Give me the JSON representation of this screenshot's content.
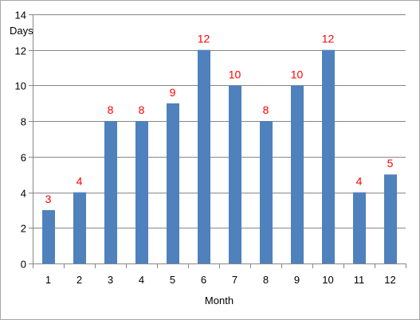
{
  "chart_data": {
    "type": "bar",
    "title": "",
    "xlabel": "Month",
    "ylabel": "Days",
    "categories": [
      "1",
      "2",
      "3",
      "4",
      "5",
      "6",
      "7",
      "8",
      "9",
      "10",
      "11",
      "12"
    ],
    "values": [
      3,
      4,
      8,
      8,
      9,
      12,
      10,
      8,
      10,
      12,
      4,
      5
    ],
    "data_labels": [
      "3",
      "4",
      "8",
      "8",
      "9",
      "12",
      "10",
      "8",
      "10",
      "12",
      "4",
      "5"
    ],
    "ylim": [
      0,
      14
    ],
    "yticks": [
      "0",
      "2",
      "4",
      "6",
      "8",
      "10",
      "12",
      "14"
    ],
    "grid": true,
    "legend": "none",
    "colors": {
      "bar": "#4f81bd",
      "data_label": "#ff0000",
      "grid": "#878787",
      "axis": "#878787"
    }
  }
}
